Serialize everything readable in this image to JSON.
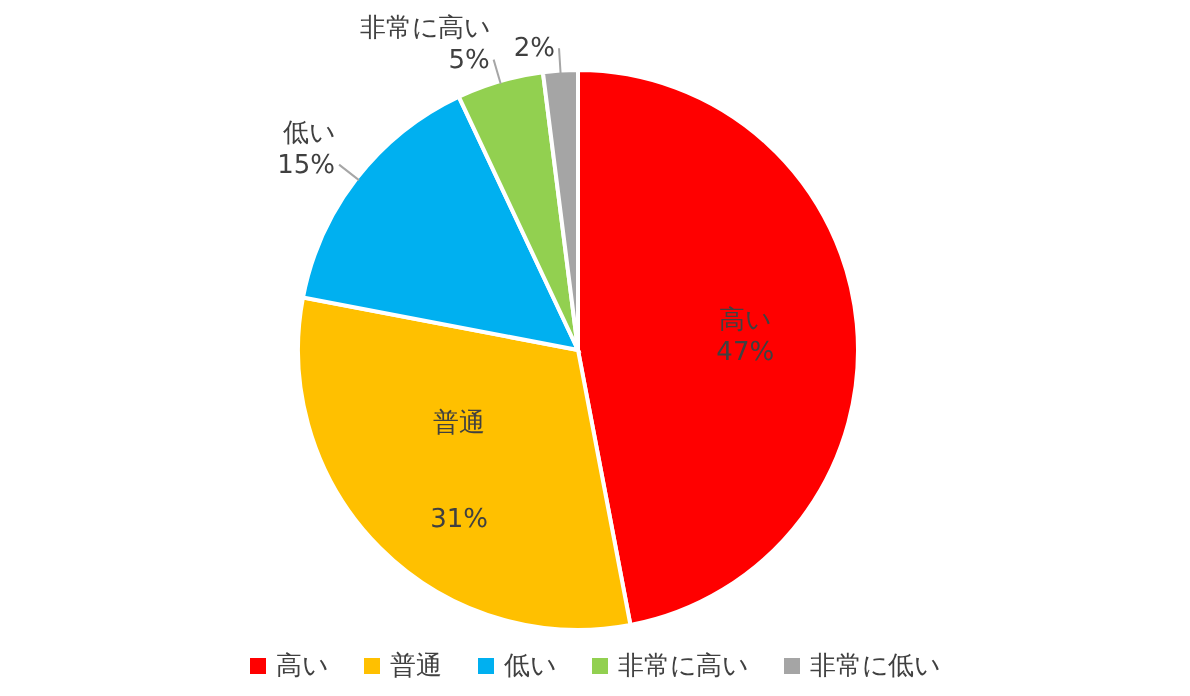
{
  "chart_data": {
    "type": "pie",
    "categories": [
      "高い",
      "普通",
      "低い",
      "非常に高い",
      "非常に低い"
    ],
    "values": [
      47,
      31,
      15,
      5,
      2
    ],
    "colors": [
      "#ff0000",
      "#ffc000",
      "#00b0f0",
      "#92d050",
      "#a5a5a5"
    ],
    "value_labels": [
      "高い\n47%",
      "普通\n\n\n31%",
      "低い\n15%",
      "非常に高い\n5%",
      "2%"
    ],
    "legend": "bottom"
  }
}
